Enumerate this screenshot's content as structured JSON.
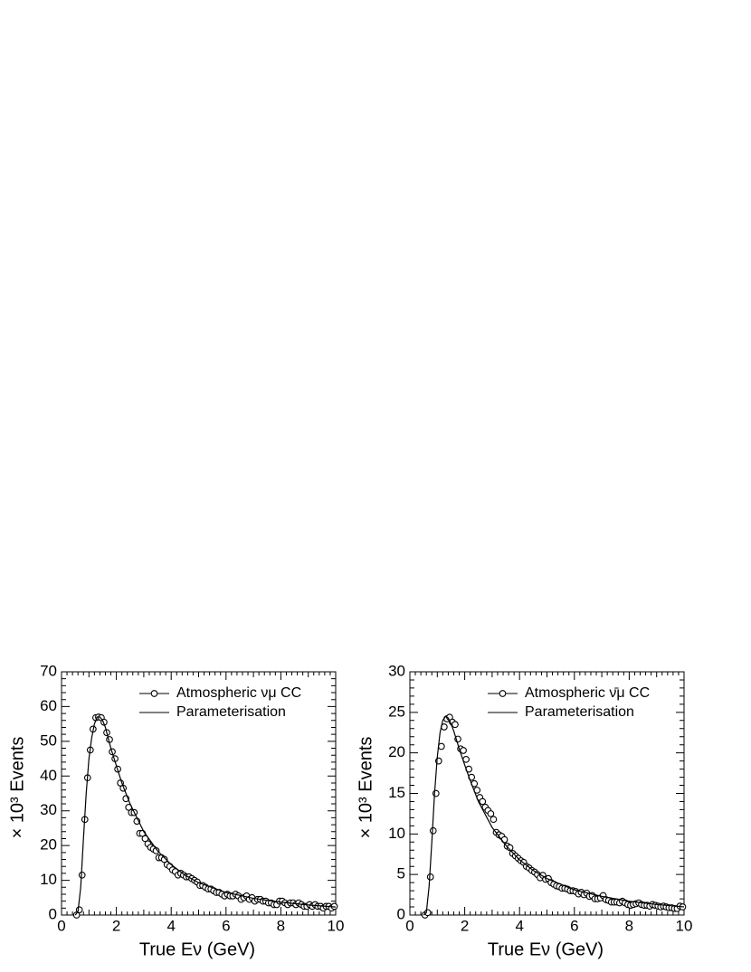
{
  "chart_data": [
    {
      "type": "line",
      "xlabel": "True Eν (GeV)",
      "ylabel": "× 10³ Events",
      "xlim": [
        0,
        10
      ],
      "xticks": [
        0,
        2,
        4,
        6,
        8,
        10
      ],
      "ylim": [
        0,
        70
      ],
      "yticks": [
        0,
        10,
        20,
        30,
        40,
        50,
        60,
        70
      ],
      "legend": "top-right",
      "series": [
        {
          "name": "Atmospheric νμ CC",
          "color": "#000000",
          "marker": "circle",
          "x": [
            0.55,
            0.65,
            0.75,
            0.85,
            0.95,
            1.05,
            1.15,
            1.25,
            1.35,
            1.45,
            1.55,
            1.65,
            1.75,
            1.85,
            1.95,
            2.05,
            2.15,
            2.25,
            2.35,
            2.45,
            2.55,
            2.65,
            2.75,
            2.85,
            2.95,
            3.05,
            3.15,
            3.25,
            3.35,
            3.45,
            3.55,
            3.65,
            3.75,
            3.85,
            3.95,
            4.05,
            4.15,
            4.25,
            4.35,
            4.45,
            4.55,
            4.65,
            4.75,
            4.85,
            4.95,
            5.05,
            5.15,
            5.25,
            5.35,
            5.45,
            5.55,
            5.65,
            5.75,
            5.85,
            5.95,
            6.05,
            6.15,
            6.25,
            6.35,
            6.45,
            6.55,
            6.65,
            6.75,
            6.85,
            6.95,
            7.05,
            7.15,
            7.25,
            7.35,
            7.45,
            7.55,
            7.65,
            7.75,
            7.85,
            7.95,
            8.05,
            8.15,
            8.25,
            8.35,
            8.45,
            8.55,
            8.65,
            8.75,
            8.85,
            8.95,
            9.05,
            9.15,
            9.25,
            9.35,
            9.45,
            9.55,
            9.65,
            9.75,
            9.85,
            9.95
          ],
          "values": [
            0,
            1.5,
            11.5,
            27.5,
            39.5,
            47.5,
            53.5,
            56.8,
            57,
            56.8,
            55.5,
            52.5,
            50.5,
            47,
            45,
            42,
            38,
            36.5,
            33.5,
            31,
            29.5,
            29.5,
            27,
            23.5,
            23.5,
            22,
            20.5,
            19.5,
            19,
            18.5,
            16.5,
            16.5,
            16,
            14.5,
            14,
            13,
            12.5,
            11.5,
            12,
            11.5,
            11,
            11,
            10.5,
            10,
            9.5,
            8.5,
            8.5,
            8,
            7.5,
            7.5,
            7,
            6.5,
            6.5,
            6,
            5.5,
            6,
            5.5,
            5.5,
            6,
            5.5,
            4.5,
            5,
            5.5,
            4.5,
            5,
            4,
            4.5,
            4.5,
            4,
            4,
            3.5,
            3.5,
            3,
            3,
            4,
            4,
            3.5,
            3,
            3.5,
            3.5,
            3,
            3.5,
            3,
            2.5,
            2.5,
            3,
            2.5,
            3,
            2.5,
            2.5,
            2,
            2.5,
            2.5,
            2,
            2.5
          ]
        },
        {
          "name": "Parameterisation",
          "color": "#000000",
          "x": [
            0.5,
            0.6,
            0.7,
            0.8,
            0.9,
            1,
            1.1,
            1.2,
            1.3,
            1.4,
            1.5,
            1.6,
            1.8,
            2,
            2.2,
            2.5,
            3,
            3.5,
            4,
            4.5,
            5,
            6,
            7,
            8,
            9,
            10
          ],
          "values": [
            0,
            1,
            8,
            22,
            35,
            45,
            51,
            55,
            57,
            57,
            56,
            54,
            48,
            43,
            38,
            32,
            24,
            18.5,
            14.5,
            11.5,
            9.3,
            6.5,
            4.8,
            3.7,
            2.9,
            2.3
          ]
        }
      ]
    },
    {
      "type": "line",
      "xlabel": "True Eν (GeV)",
      "ylabel": "× 10³ Events",
      "xlim": [
        0,
        10
      ],
      "xticks": [
        0,
        2,
        4,
        6,
        8,
        10
      ],
      "ylim": [
        0,
        30
      ],
      "yticks": [
        0,
        5,
        10,
        15,
        20,
        25,
        30
      ],
      "legend": "top-right",
      "series": [
        {
          "name": "Atmospheric ν̄μ CC",
          "color": "#000000",
          "marker": "circle",
          "x": [
            0.55,
            0.65,
            0.75,
            0.85,
            0.95,
            1.05,
            1.15,
            1.25,
            1.35,
            1.45,
            1.55,
            1.65,
            1.75,
            1.85,
            1.95,
            2.05,
            2.15,
            2.25,
            2.35,
            2.45,
            2.55,
            2.65,
            2.75,
            2.85,
            2.95,
            3.05,
            3.15,
            3.25,
            3.35,
            3.45,
            3.55,
            3.65,
            3.75,
            3.85,
            3.95,
            4.05,
            4.15,
            4.25,
            4.35,
            4.45,
            4.55,
            4.65,
            4.75,
            4.85,
            4.95,
            5.05,
            5.15,
            5.25,
            5.35,
            5.45,
            5.55,
            5.65,
            5.75,
            5.85,
            5.95,
            6.05,
            6.15,
            6.25,
            6.35,
            6.45,
            6.55,
            6.65,
            6.75,
            6.85,
            6.95,
            7.05,
            7.15,
            7.25,
            7.35,
            7.45,
            7.55,
            7.65,
            7.75,
            7.85,
            7.95,
            8.05,
            8.15,
            8.25,
            8.35,
            8.45,
            8.55,
            8.65,
            8.75,
            8.85,
            8.95,
            9.05,
            9.15,
            9.25,
            9.35,
            9.45,
            9.55,
            9.65,
            9.75,
            9.85,
            9.95
          ],
          "values": [
            0,
            0.3,
            4.7,
            10.4,
            15,
            19,
            20.8,
            23.2,
            24.2,
            24.4,
            23.8,
            23.5,
            21.7,
            20.5,
            20.3,
            19.2,
            18,
            17,
            16.2,
            15.4,
            14.5,
            14,
            13.3,
            12.9,
            12.5,
            11.8,
            10.2,
            9.9,
            9.7,
            9.3,
            8.5,
            8.3,
            7.6,
            7.3,
            7,
            6.7,
            6.5,
            6,
            5.8,
            5.5,
            5.3,
            5,
            4.6,
            4.9,
            4.4,
            4.5,
            4,
            3.8,
            3.6,
            3.5,
            3.3,
            3.3,
            3.2,
            3,
            3,
            2.9,
            2.6,
            2.8,
            2.5,
            2.7,
            2.3,
            2.4,
            2,
            2,
            2.1,
            2.4,
            1.9,
            1.8,
            1.6,
            1.6,
            1.6,
            1.5,
            1.7,
            1.5,
            1.3,
            1.2,
            1.3,
            1.4,
            1.5,
            1.3,
            1.2,
            1.2,
            1.1,
            1.3,
            1.2,
            1.1,
            1,
            1.1,
            1,
            0.9,
            0.9,
            0.8,
            0.8,
            1.1,
            1
          ]
        },
        {
          "name": "Parameterisation",
          "color": "#000000",
          "x": [
            0.5,
            0.6,
            0.7,
            0.8,
            0.9,
            1,
            1.1,
            1.2,
            1.3,
            1.4,
            1.5,
            1.6,
            1.8,
            2,
            2.2,
            2.5,
            3,
            3.5,
            4,
            4.5,
            5,
            6,
            7,
            8,
            9,
            10
          ],
          "values": [
            0,
            0.3,
            3.5,
            9,
            15,
            19.5,
            22.5,
            24,
            24.5,
            24.3,
            23.6,
            22.7,
            20.5,
            18.5,
            16.6,
            14,
            10.8,
            8.6,
            6.8,
            5.5,
            4.5,
            3.1,
            2.3,
            1.7,
            1.3,
            1
          ]
        }
      ]
    }
  ]
}
